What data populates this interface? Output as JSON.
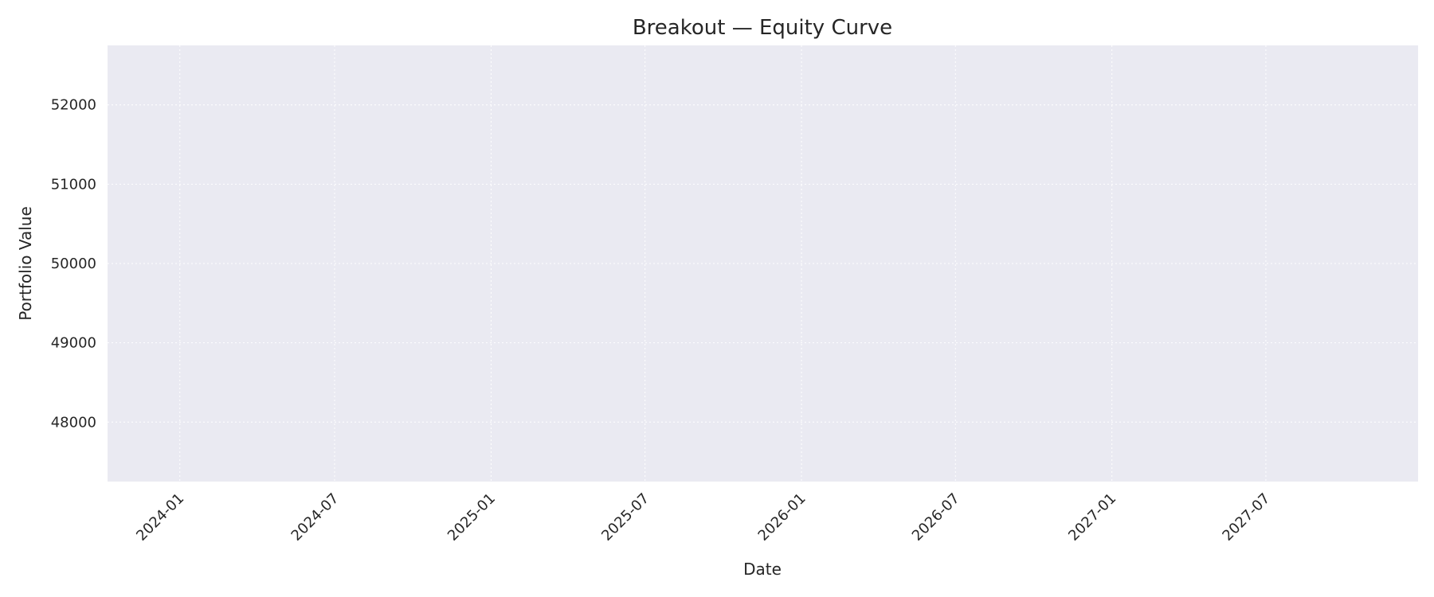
{
  "chart_data": {
    "type": "line",
    "title": "Breakout — Equity Curve",
    "xlabel": "Date",
    "ylabel": "Portfolio Value",
    "x_ticks": [
      "2024-01",
      "2024-07",
      "2025-01",
      "2025-07",
      "2026-01",
      "2026-07",
      "2027-01",
      "2027-07"
    ],
    "y_ticks": [
      48000,
      49000,
      50000,
      51000,
      52000
    ],
    "xlim": [
      "2023-10-08",
      "2027-12-27"
    ],
    "ylim": [
      47250,
      52750
    ],
    "grid": true,
    "series": [
      {
        "values": []
      }
    ],
    "colors": {
      "plot_background": "#eaeaf2",
      "grid": "#ffffff",
      "text": "#262626"
    }
  }
}
